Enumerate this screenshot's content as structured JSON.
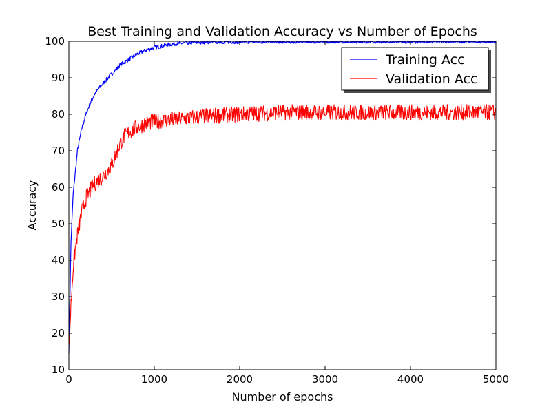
{
  "chart_data": {
    "type": "line",
    "title": "Best Training and Validation Accuracy vs Number of Epochs",
    "xlabel": "Number of epochs",
    "ylabel": "Accuracy",
    "xlim": [
      0,
      5000
    ],
    "ylim": [
      10,
      100
    ],
    "xticks": [
      "0",
      "1000",
      "2000",
      "3000",
      "4000",
      "5000"
    ],
    "yticks": [
      "10",
      "20",
      "30",
      "40",
      "50",
      "60",
      "70",
      "80",
      "90",
      "100"
    ],
    "grid": false,
    "legend_position": "top-right",
    "series": [
      {
        "name": "Training Acc",
        "color": "#0000ff",
        "x": [
          0,
          25,
          50,
          100,
          150,
          200,
          250,
          300,
          400,
          500,
          600,
          700,
          800,
          900,
          1000,
          1200,
          1400,
          1600,
          2000,
          3000,
          4000,
          5000
        ],
        "y": [
          15,
          45,
          58,
          70,
          76,
          80,
          83,
          85.5,
          88.5,
          91,
          93.5,
          95,
          96.5,
          97.5,
          98.3,
          99.2,
          99.6,
          99.8,
          99.9,
          100,
          100,
          100
        ]
      },
      {
        "name": "Validation Acc",
        "color": "#ff0000",
        "x": [
          0,
          25,
          50,
          75,
          100,
          150,
          200,
          250,
          300,
          400,
          500,
          550,
          600,
          650,
          700,
          800,
          900,
          1000,
          1200,
          1400,
          1600,
          2000,
          2500,
          3000,
          3500,
          4000,
          4500,
          5000
        ],
        "y": [
          15,
          28,
          38,
          43,
          47,
          53,
          57,
          59,
          61,
          63,
          66,
          69,
          72,
          74,
          75,
          76.5,
          77.5,
          78,
          78.5,
          79,
          79.5,
          80,
          80.5,
          80.5,
          80.5,
          80.5,
          80.5,
          80.5
        ]
      }
    ]
  }
}
